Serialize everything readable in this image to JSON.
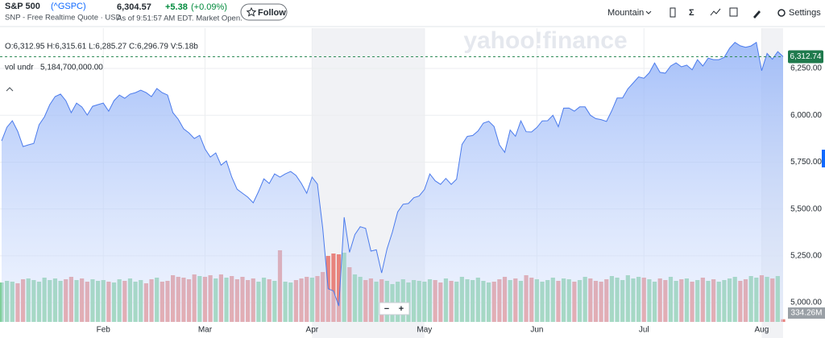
{
  "header": {
    "title": "S&P 500",
    "symbol": "(^GSPC)",
    "subtitle": "SNP - Free Realtime Quote · USD",
    "price": "6,304.57",
    "change": "+5.38",
    "change_pct": "(+0.09%)",
    "time": "As of 9:51:57 AM EDT. Market Open.",
    "follow": "Follow",
    "chart_style": "Mountain",
    "settings": "Settings"
  },
  "chart_data": {
    "type": "mountain",
    "ohlc": "O:6,312.95 H:6,315.61 L:6,285.27 C:6,296.79 V:5.18b",
    "volume_label": "vol undr",
    "volume_value": "5,184,700,000.00",
    "volume_last": "334.26M",
    "watermark": "yahoo!finance",
    "zoom": [
      "−",
      "+"
    ],
    "xlim": [
      0,
      146
    ],
    "xticks": [
      {
        "value": 19,
        "label": "Feb"
      },
      {
        "value": 38,
        "label": "Mar"
      },
      {
        "value": 58,
        "label": "Apr"
      },
      {
        "value": 79,
        "label": "May"
      },
      {
        "value": 100,
        "label": "Jun"
      },
      {
        "value": 120,
        "label": "Jul"
      },
      {
        "value": 142,
        "label": "Aug"
      }
    ],
    "ylim": [
      4897,
      6465
    ],
    "yticks": [
      {
        "value": 5000,
        "label": "5,000.00"
      },
      {
        "value": 5250,
        "label": "5,250.00"
      },
      {
        "value": 5500,
        "label": "5,500.00"
      },
      {
        "value": 5750,
        "label": "5,750.00"
      },
      {
        "value": 6000,
        "label": "6,000.00"
      },
      {
        "value": 6250,
        "label": "6,250.00"
      }
    ],
    "vlim": [
      0,
      9
    ],
    "grid": true,
    "last_price": {
      "value": 6312.74,
      "label": "6,312.74"
    },
    "series": [
      {
        "name": "S&P 500",
        "color": "#4b7bec",
        "values": [
          5863,
          5936,
          5971,
          5915,
          5833,
          5842,
          5850,
          5949,
          5992,
          6057,
          6100,
          6113,
          6078,
          6014,
          6065,
          6044,
          6001,
          6048,
          6057,
          6065,
          6022,
          6078,
          6108,
          6091,
          6113,
          6121,
          6134,
          6121,
          6100,
          6143,
          6121,
          6108,
          6014,
          5979,
          5928,
          5906,
          5876,
          5893,
          5820,
          5777,
          5799,
          5734,
          5756,
          5670,
          5605,
          5584,
          5563,
          5533,
          5593,
          5661,
          5636,
          5687,
          5670,
          5687,
          5700,
          5679,
          5636,
          5584,
          5670,
          5633,
          5396,
          5074,
          5062,
          4982,
          5456,
          5268,
          5363,
          5405,
          5396,
          5275,
          5282,
          5158,
          5287,
          5376,
          5484,
          5525,
          5529,
          5560,
          5569,
          5604,
          5687,
          5650,
          5631,
          5663,
          5631,
          5659,
          5844,
          5887,
          5892,
          5916,
          5958,
          5968,
          5940,
          5842,
          5802,
          5921,
          5888,
          5970,
          5912,
          5911,
          5935,
          5970,
          5971,
          6000,
          5939,
          6038,
          6039,
          6022,
          6045,
          6045,
          6000,
          5982,
          5977,
          5967,
          6025,
          6092,
          6092,
          6141,
          6173,
          6205,
          6198,
          6227,
          6279,
          6229,
          6225,
          6263,
          6280,
          6259,
          6268,
          6243,
          6297,
          6263,
          6305,
          6297,
          6297,
          6309,
          6358,
          6389,
          6371,
          6363,
          6370,
          6389,
          6238,
          6330,
          6299,
          6340,
          6313
        ]
      },
      {
        "name": "vol undr",
        "axis": "volume",
        "up_color": "#7fcf9a",
        "down_color": "#e8837d",
        "values": [
          4.9,
          5.1,
          5.0,
          4.8,
          5.3,
          5.4,
          5.2,
          5.0,
          5.5,
          5.2,
          5.4,
          5.1,
          5.3,
          5.6,
          5.2,
          5.4,
          5.0,
          5.3,
          5.1,
          5.2,
          5.0,
          4.9,
          5.3,
          5.1,
          5.4,
          5.0,
          5.2,
          4.8,
          5.3,
          5.5,
          5.0,
          5.1,
          5.8,
          5.6,
          5.5,
          5.3,
          5.9,
          5.7,
          5.6,
          5.8,
          5.4,
          5.9,
          5.5,
          5.7,
          5.3,
          5.6,
          5.2,
          5.4,
          5.0,
          5.5,
          5.3,
          5.1,
          8.9,
          5.0,
          4.9,
          5.2,
          5.4,
          5.6,
          5.5,
          5.7,
          6.2,
          8.2,
          8.5,
          8.4,
          8.6,
          6.8,
          5.9,
          5.6,
          5.2,
          5.4,
          5.0,
          5.3,
          5.1,
          4.7,
          5.0,
          5.3,
          4.9,
          5.2,
          5.1,
          5.0,
          5.3,
          5.2,
          4.9,
          5.4,
          5.1,
          5.0,
          5.6,
          5.3,
          5.2,
          5.5,
          5.1,
          4.9,
          5.0,
          5.3,
          5.6,
          5.2,
          5.4,
          5.1,
          5.8,
          5.5,
          5.3,
          5.0,
          5.2,
          5.5,
          5.1,
          5.4,
          5.3,
          5.0,
          5.2,
          5.6,
          5.4,
          5.1,
          5.0,
          5.3,
          5.7,
          5.5,
          5.2,
          5.8,
          5.4,
          5.6,
          5.5,
          5.3,
          5.0,
          5.4,
          5.2,
          5.6,
          5.1,
          5.3,
          5.4,
          5.0,
          5.2,
          5.5,
          5.1,
          5.3,
          5.0,
          5.2,
          5.4,
          5.6,
          5.1,
          5.3,
          5.7,
          5.5,
          5.8,
          5.6,
          5.4,
          5.7,
          0.33
        ]
      }
    ]
  }
}
